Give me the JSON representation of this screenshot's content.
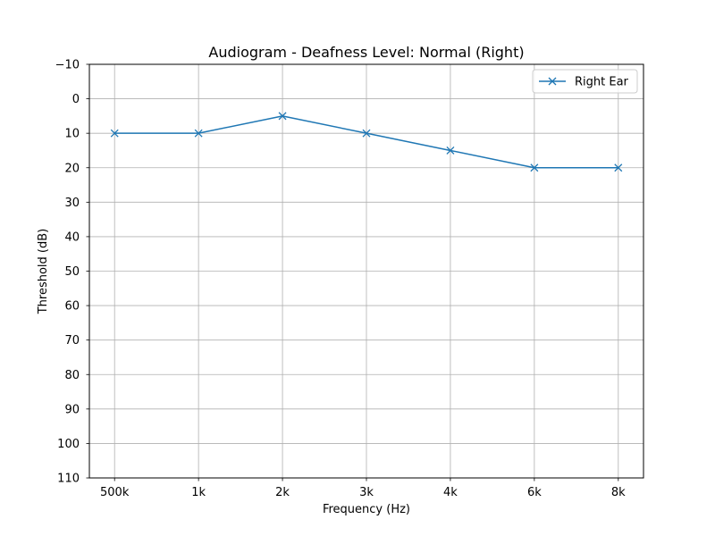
{
  "chart_data": {
    "type": "line",
    "title": "Audiogram - Deafness Level: Normal (Right)",
    "xlabel": "Frequency (Hz)",
    "ylabel": "Threshold (dB)",
    "categories": [
      "500k",
      "1k",
      "2k",
      "3k",
      "4k",
      "6k",
      "8k"
    ],
    "y_ticks": [
      "−10",
      "0",
      "10",
      "20",
      "30",
      "40",
      "50",
      "60",
      "70",
      "80",
      "90",
      "100",
      "110"
    ],
    "ylim": [
      110,
      -10
    ],
    "y_inverted": true,
    "grid": true,
    "legend_position": "top-right",
    "series": [
      {
        "name": "Right Ear",
        "color": "#1f77b4",
        "marker": "x",
        "values": [
          10,
          10,
          5,
          10,
          15,
          20,
          20
        ]
      }
    ]
  }
}
